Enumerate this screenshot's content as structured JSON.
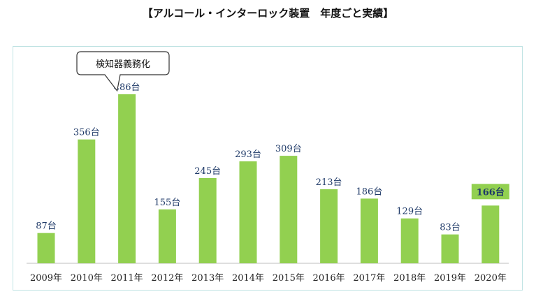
{
  "chart_data": {
    "type": "bar",
    "title": "【アルコール・インターロック装置　年度ごと実績】",
    "categories": [
      "2009年",
      "2010年",
      "2011年",
      "2012年",
      "2013年",
      "2014年",
      "2015年",
      "2016年",
      "2017年",
      "2018年",
      "2019年",
      "2020年"
    ],
    "values": [
      87,
      356,
      486,
      155,
      245,
      293,
      309,
      213,
      186,
      129,
      83,
      166
    ],
    "value_labels": [
      "87台",
      "356台",
      "486台",
      "155台",
      "245台",
      "293台",
      "309台",
      "213台",
      "186台",
      "129台",
      "83台",
      "166台"
    ],
    "highlight_index": 11,
    "annotation": {
      "text": "検知器義務化",
      "category": "2011年"
    },
    "ylim": [
      0,
      520
    ],
    "grid": false,
    "legend": "none",
    "colors": {
      "bar": "#92d050",
      "highlight_label_bg": "#92d050",
      "value_label": "#1f3a68",
      "frame": "#bfe3e3",
      "axis": "#bfbfbf"
    }
  }
}
